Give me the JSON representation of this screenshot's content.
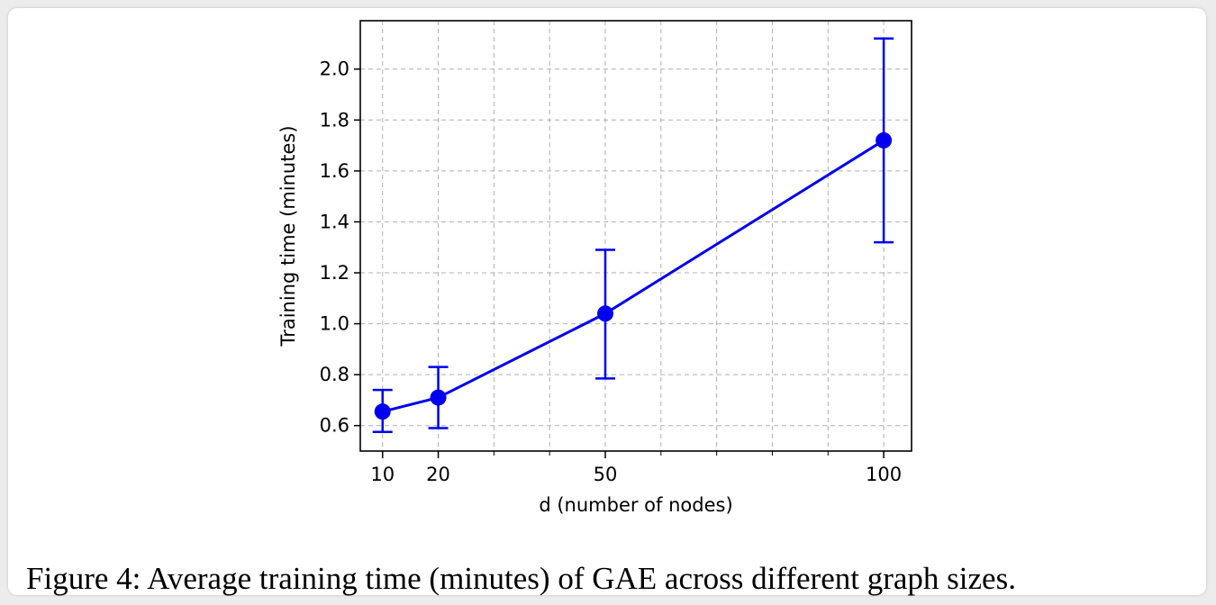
{
  "chart_data": {
    "type": "line",
    "x": [
      10,
      20,
      50,
      100
    ],
    "series": [
      {
        "values": [
          0.655,
          0.71,
          1.04,
          1.72
        ],
        "error_lower": [
          0.575,
          0.59,
          0.785,
          1.32
        ],
        "error_upper": [
          0.74,
          0.83,
          1.29,
          2.12
        ]
      }
    ],
    "xlabel": "d (number of nodes)",
    "ylabel": "Training time (minutes)",
    "xticks": [
      10,
      20,
      50,
      100
    ],
    "xtick_labels": [
      "10",
      "20",
      "50",
      "100"
    ],
    "yticks": [
      0.6,
      0.8,
      1.0,
      1.2,
      1.4,
      1.6,
      1.8,
      2.0
    ],
    "ytick_labels": [
      "0.6",
      "0.8",
      "1.0",
      "1.2",
      "1.4",
      "1.6",
      "1.8",
      "2.0"
    ],
    "xlim": [
      6,
      105
    ],
    "ylim": [
      0.5,
      2.19
    ],
    "grid": true,
    "color": "#0000ee"
  },
  "caption": "Figure 4:  Average training time (minutes) of GAE across different graph sizes."
}
